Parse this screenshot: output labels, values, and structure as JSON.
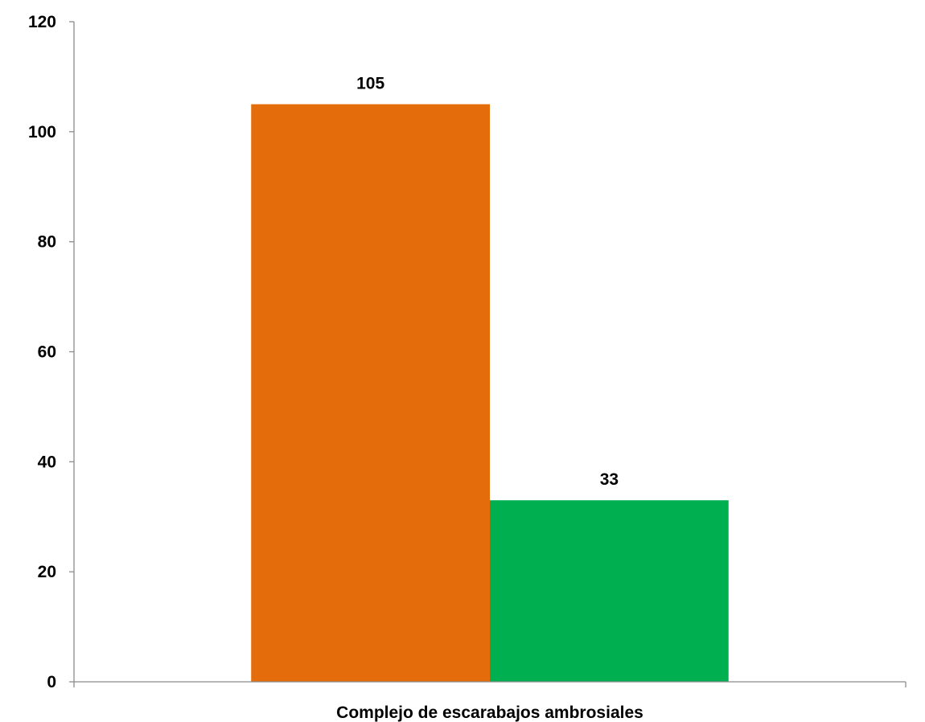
{
  "chart_data": {
    "type": "bar",
    "title": "",
    "xlabel": "",
    "ylabel": "",
    "categories": [
      "Complejo de escarabajos ambrosiales"
    ],
    "series": [
      {
        "values": [
          105
        ],
        "color": "#E46C0A"
      },
      {
        "values": [
          33
        ],
        "color": "#00B050"
      }
    ],
    "ylim": [
      0,
      120
    ],
    "yticks": [
      0,
      20,
      40,
      60,
      80,
      100,
      120
    ],
    "grid": false,
    "legend": "none",
    "data_labels": true
  }
}
